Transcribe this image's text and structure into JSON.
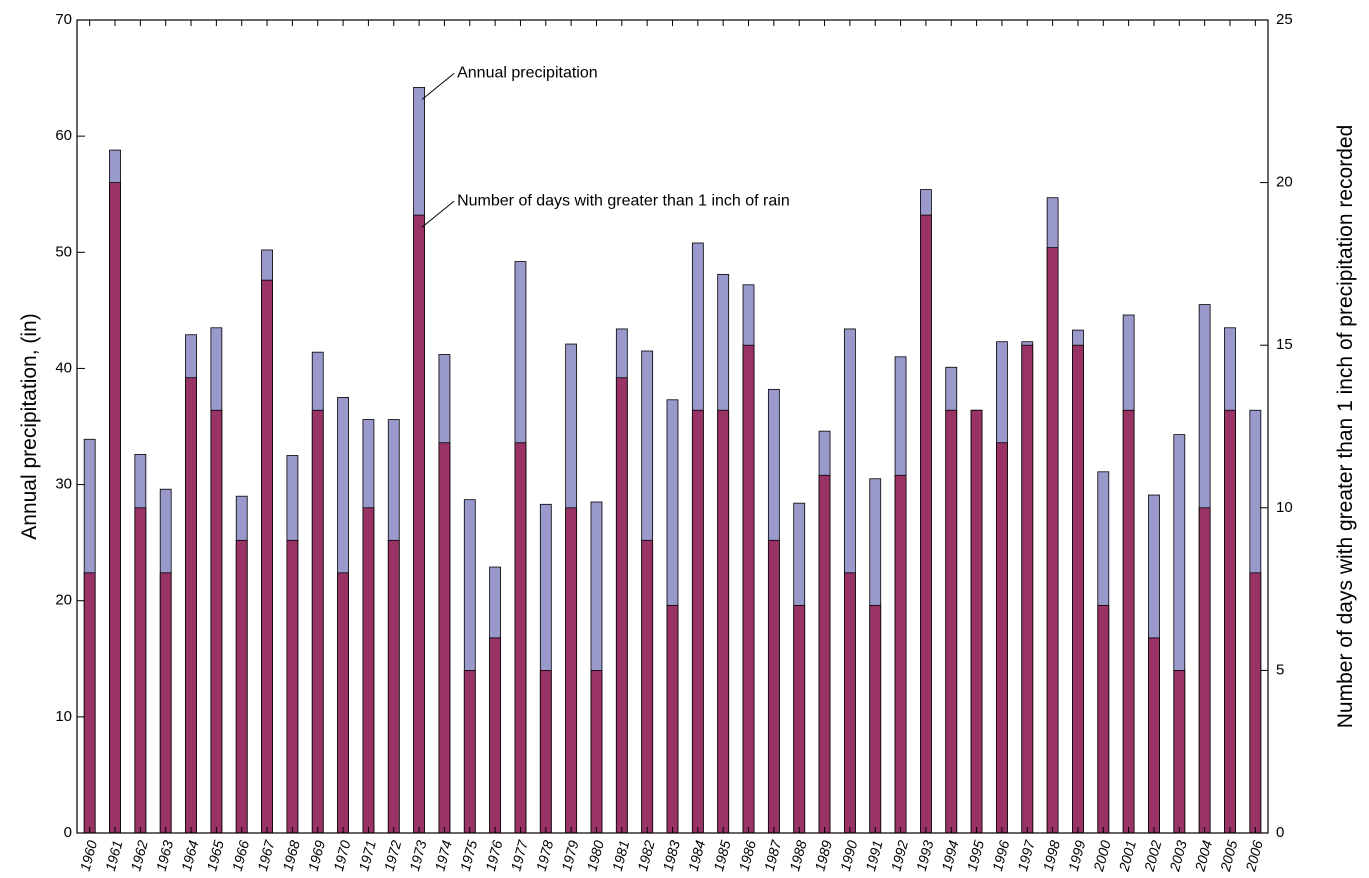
{
  "chart_data": {
    "type": "bar",
    "categories": [
      "1960",
      "1961",
      "1962",
      "1963",
      "1964",
      "1965",
      "1966",
      "1967",
      "1968",
      "1969",
      "1970",
      "1971",
      "1972",
      "1973",
      "1974",
      "1975",
      "1976",
      "1977",
      "1978",
      "1979",
      "1980",
      "1981",
      "1982",
      "1983",
      "1984",
      "1985",
      "1986",
      "1987",
      "1988",
      "1989",
      "1990",
      "1991",
      "1992",
      "1993",
      "1994",
      "1995",
      "1996",
      "1997",
      "1998",
      "1999",
      "2000",
      "2001",
      "2002",
      "2003",
      "2004",
      "2005",
      "2006"
    ],
    "series": [
      {
        "name": "Annual precipitation",
        "axis": "left",
        "color": "#9999cc",
        "values": [
          33.9,
          58.8,
          32.6,
          29.6,
          42.9,
          43.5,
          29.0,
          50.2,
          32.5,
          41.4,
          37.5,
          35.6,
          35.6,
          64.2,
          41.2,
          28.7,
          22.9,
          49.2,
          28.3,
          42.1,
          28.5,
          43.4,
          41.5,
          37.3,
          50.8,
          48.1,
          47.2,
          38.2,
          28.4,
          34.6,
          43.4,
          30.5,
          41.0,
          55.4,
          40.1,
          36.4,
          42.3,
          42.3,
          54.7,
          43.3,
          31.1,
          44.6,
          29.1,
          34.3,
          45.5,
          43.5,
          36.4
        ]
      },
      {
        "name": "Number of days with greater than 1 inch of rain",
        "axis": "right",
        "color": "#993366",
        "values": [
          8,
          20,
          10,
          8,
          14,
          13,
          9,
          17,
          9,
          13,
          8,
          10,
          9,
          19,
          12,
          5,
          6,
          12,
          5,
          10,
          5,
          14,
          9,
          7,
          13,
          13,
          15,
          9,
          7,
          11,
          8,
          7,
          11,
          19,
          13,
          13,
          12,
          15,
          18,
          15,
          7,
          13,
          6,
          5,
          10,
          13,
          8
        ]
      }
    ],
    "xlabel": "",
    "ylabel": "Annual precipitation, (in)",
    "y2label": "Number of days with greater than 1 inch of precipitation recorded",
    "ylim": [
      0,
      70
    ],
    "y2lim": [
      0,
      25
    ],
    "yticks": [
      0,
      10,
      20,
      30,
      40,
      50,
      60,
      70
    ],
    "y2ticks": [
      0,
      5,
      10,
      15,
      20,
      25
    ],
    "annotations": [
      {
        "text": "Annual precipitation",
        "category": "1973",
        "series": 0
      },
      {
        "text": "Number of days with greater than 1 inch of rain",
        "category": "1973",
        "series": 1
      }
    ],
    "grid": false,
    "legend": "none"
  }
}
